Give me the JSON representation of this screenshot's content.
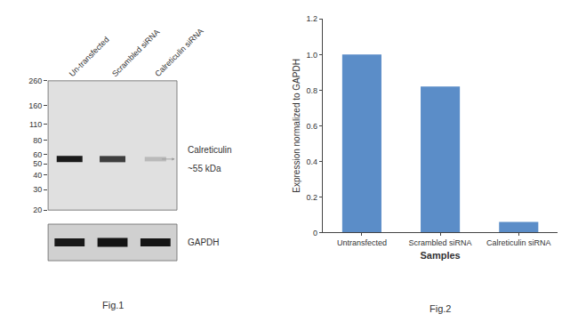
{
  "chart_data": [
    {
      "type": "blot",
      "categories": [
        "Un-transfected",
        "Scrambled siRNA",
        "Calreticulin siRNA"
      ],
      "log": "y",
      "ylim": [
        20,
        260
      ],
      "yticks": [
        260,
        160,
        110,
        80,
        60,
        50,
        40,
        30,
        20
      ],
      "grid": false,
      "annotations": [
        {
          "text": "Calreticulin",
          "y": 55
        },
        {
          "text": "~55 kDa",
          "y": 55
        },
        {
          "text": "GAPDH"
        },
        {
          "text": "Fig.1"
        }
      ]
    },
    {
      "type": "bar",
      "categories": [
        "Untransfected",
        "Scrambled siRNA",
        "Calreticulin siRNA"
      ],
      "values": [
        1.0,
        0.82,
        0.06
      ],
      "color": "#5b8dc8",
      "xlabel": "Samples",
      "ylabel": "Expression normalized to GAPDH",
      "ylim": [
        0,
        1.2
      ],
      "yticks": [
        0,
        0.2,
        0.4,
        0.6,
        0.8,
        {
          "value": 1.0,
          "label": "1.0"
        },
        1.2
      ],
      "grid": false,
      "annotations": [
        {
          "text": "Fig.2"
        }
      ]
    }
  ]
}
